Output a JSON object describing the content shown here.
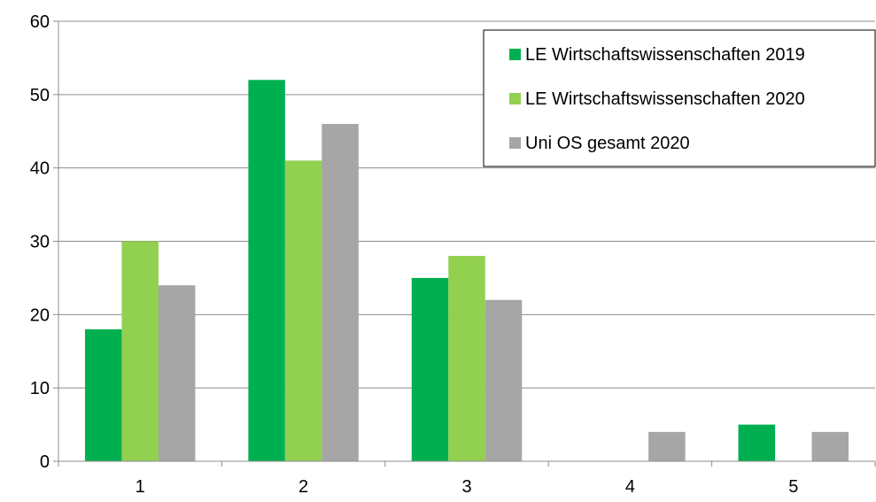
{
  "chart_data": {
    "type": "bar",
    "categories": [
      "1",
      "2",
      "3",
      "4",
      "5"
    ],
    "series": [
      {
        "name": "LE Wirtschaftswissenschaften 2019",
        "values": [
          18,
          52,
          25,
          0,
          5
        ],
        "color": "#00b050"
      },
      {
        "name": "LE Wirtschaftswissenschaften 2020",
        "values": [
          30,
          41,
          28,
          0,
          0
        ],
        "color": "#92d050"
      },
      {
        "name": "Uni OS gesamt 2020",
        "values": [
          24,
          46,
          22,
          4,
          4
        ],
        "color": "#a6a6a6"
      }
    ],
    "title": "",
    "xlabel": "",
    "ylabel": "",
    "ylim": [
      0,
      60
    ],
    "yticks": [
      "0",
      "10",
      "20",
      "30",
      "40",
      "50",
      "60"
    ],
    "grid": true,
    "legend_position": "top-right"
  }
}
